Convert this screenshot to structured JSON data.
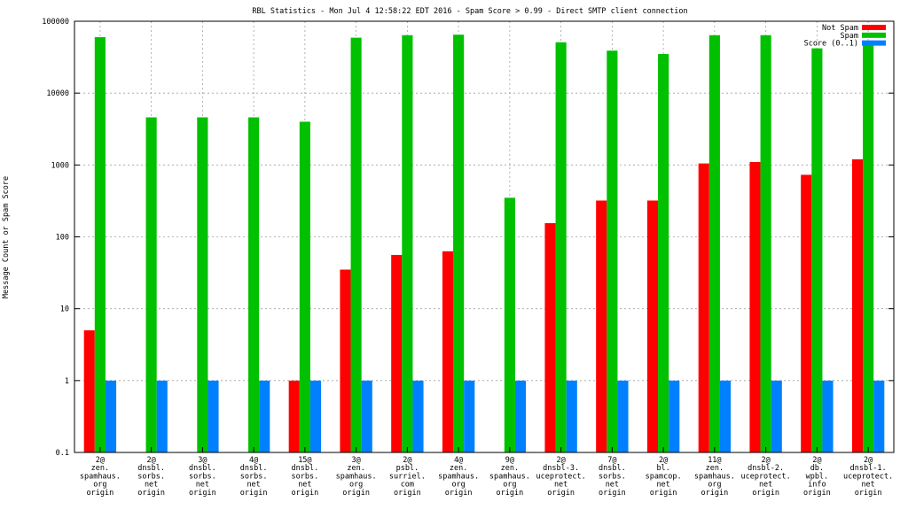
{
  "chart_data": {
    "type": "bar",
    "title": "RBL Statistics - Mon Jul  4 12:58:22 EDT 2016 - Spam Score > 0.99 - Direct SMTP client connection",
    "xlabel": "",
    "ylabel": "Message Count or Spam Score",
    "yscale": "log",
    "ylim": [
      0.1,
      100000
    ],
    "yticks": [
      "0.1",
      "1",
      "10",
      "100",
      "1000",
      "10000",
      "100000"
    ],
    "grid": true,
    "legend_position": "top-right",
    "categories": [
      [
        "2@",
        "zen.",
        "spamhaus.",
        "org",
        "origin"
      ],
      [
        "2@",
        "dnsbl.",
        "sorbs.",
        "net",
        "origin"
      ],
      [
        "3@",
        "dnsbl.",
        "sorbs.",
        "net",
        "origin"
      ],
      [
        "4@",
        "dnsbl.",
        "sorbs.",
        "net",
        "origin"
      ],
      [
        "15@",
        "dnsbl.",
        "sorbs.",
        "net",
        "origin"
      ],
      [
        "3@",
        "zen.",
        "spamhaus.",
        "org",
        "origin"
      ],
      [
        "2@",
        "psbl.",
        "surriel.",
        "com",
        "origin"
      ],
      [
        "4@",
        "zen.",
        "spamhaus.",
        "org",
        "origin"
      ],
      [
        "9@",
        "zen.",
        "spamhaus.",
        "org",
        "origin"
      ],
      [
        "2@",
        "dnsbl-3.",
        "uceprotect.",
        "net",
        "origin"
      ],
      [
        "7@",
        "dnsbl.",
        "sorbs.",
        "net",
        "origin"
      ],
      [
        "2@",
        "bl.",
        "spamcop.",
        "net",
        "origin"
      ],
      [
        "11@",
        "zen.",
        "spamhaus.",
        "org",
        "origin"
      ],
      [
        "2@",
        "dnsbl-2.",
        "uceprotect.",
        "net",
        "origin"
      ],
      [
        "2@",
        "db.",
        "wpbl.",
        "info",
        "origin"
      ],
      [
        "2@",
        "dnsbl-1.",
        "uceprotect.",
        "net",
        "origin"
      ]
    ],
    "series": [
      {
        "name": "Not Spam",
        "color": "#ff0000",
        "values": [
          5,
          null,
          null,
          null,
          1,
          35,
          56,
          63,
          null,
          155,
          320,
          320,
          1050,
          1100,
          730,
          1200
        ]
      },
      {
        "name": "Spam",
        "color": "#00c000",
        "values": [
          60000,
          4600,
          4600,
          4600,
          4000,
          59000,
          64000,
          65000,
          350,
          51000,
          39000,
          35000,
          64000,
          64000,
          42000,
          48000
        ]
      },
      {
        "name": "Score (0..1)",
        "color": "#0080ff",
        "values": [
          1,
          1,
          1,
          1,
          1,
          1,
          1,
          1,
          1,
          1,
          1,
          1,
          1,
          1,
          1,
          1
        ]
      }
    ]
  }
}
